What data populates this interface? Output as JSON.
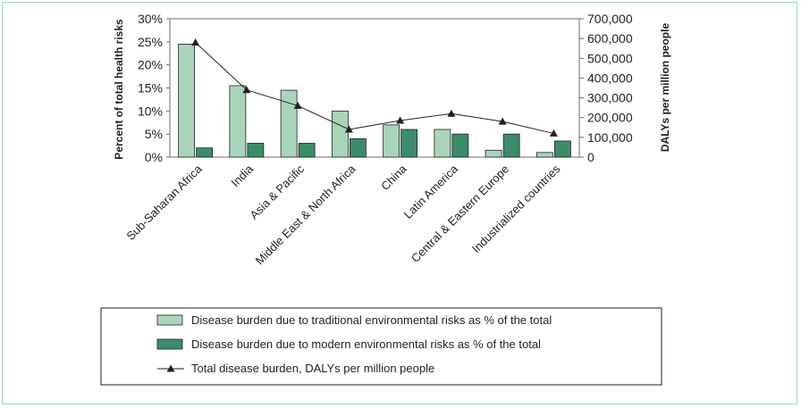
{
  "chart_data": {
    "type": "bar",
    "categories": [
      "Sub-Saharan Africa",
      "India",
      "Asia & Pacific",
      "Middle East & North Africa",
      "China",
      "Latin America",
      "Central & Eastern Europe",
      "Industrialized countries"
    ],
    "series": [
      {
        "name": "Disease burden due to traditional environmental risks as % of the total",
        "type": "bar",
        "axis": "left",
        "color": "#a8d5b9",
        "values": [
          24.5,
          15.5,
          14.5,
          10,
          7,
          6,
          1.5,
          1
        ]
      },
      {
        "name": "Disease burden due to modern environmental risks as % of the total",
        "type": "bar",
        "axis": "left",
        "color": "#3a8d68",
        "values": [
          2,
          3,
          3,
          4,
          6,
          5,
          5,
          3.5
        ]
      },
      {
        "name": "Total disease burden, DALYs per million people",
        "type": "line",
        "axis": "right",
        "color": "#231f20",
        "values": [
          580000,
          340000,
          260000,
          140000,
          185000,
          220000,
          180000,
          120000
        ]
      }
    ],
    "ylabel": "Percent of total health risks",
    "y2label": "DALYs per million people",
    "ylim": [
      0,
      30
    ],
    "y2lim": [
      0,
      700000
    ],
    "yticks": [
      "0%",
      "5%",
      "10%",
      "15%",
      "20%",
      "25%",
      "30%"
    ],
    "y2ticks": [
      "0",
      "100,000",
      "200,000",
      "300,000",
      "400,000",
      "500,000",
      "600,000",
      "700,000"
    ],
    "grid": false,
    "legend": "bottom"
  }
}
